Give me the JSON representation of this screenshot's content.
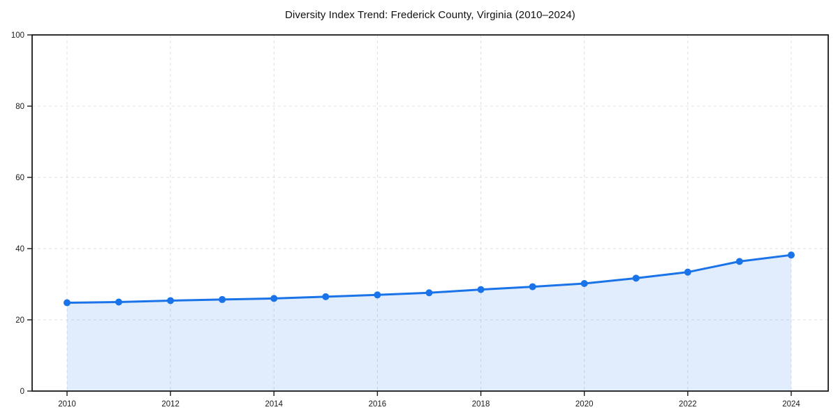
{
  "chart_data": {
    "type": "area",
    "title": "Diversity Index Trend: Frederick County, Virginia (2010–2024)",
    "x": [
      2010,
      2011,
      2012,
      2013,
      2014,
      2015,
      2016,
      2017,
      2018,
      2019,
      2020,
      2021,
      2022,
      2023,
      2024
    ],
    "values": [
      24.8,
      25.0,
      25.4,
      25.7,
      26.0,
      26.5,
      27.0,
      27.6,
      28.5,
      29.3,
      30.2,
      31.7,
      33.4,
      36.4,
      38.2
    ],
    "series_name": "Diversity Index",
    "xlabel": "",
    "ylabel": "",
    "xlim": [
      2010,
      2024
    ],
    "ylim": [
      0,
      100
    ],
    "xticks": [
      2010,
      2012,
      2014,
      2016,
      2018,
      2020,
      2022,
      2024
    ],
    "yticks": [
      0,
      20,
      40,
      60,
      80,
      100
    ],
    "grid": true,
    "grid_style": "dashed",
    "legend": false,
    "colors": {
      "line": "#1a73e8",
      "marker": "#1a73e8",
      "fill": "#1a73e8",
      "fill_opacity": 0.13,
      "grid": "#e0e0e0",
      "axis_box": "#1a1a1a",
      "tick_label": "#1a1a1a",
      "background": "#ffffff"
    }
  }
}
